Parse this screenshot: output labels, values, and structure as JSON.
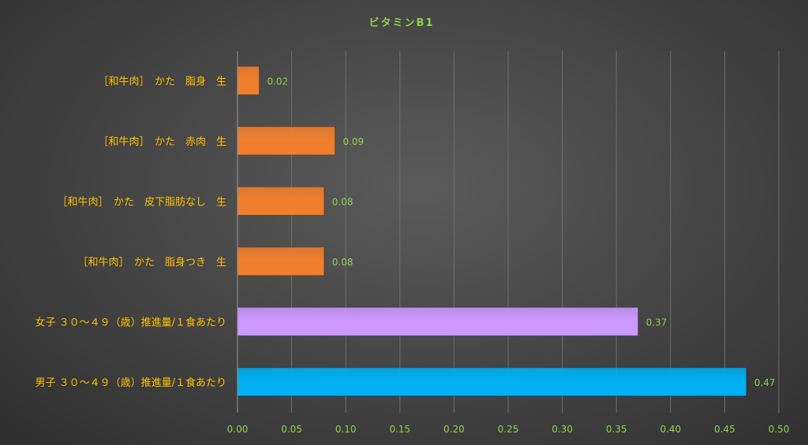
{
  "chart_data": {
    "type": "bar",
    "orientation": "horizontal",
    "title": "ビタミンB1",
    "categories": [
      "［和牛肉］　かた　脂身　生",
      "［和牛肉］　かた　赤肉　生",
      "［和牛肉］　かた　皮下脂肪なし　生",
      "［和牛肉］　かた　脂身つき　生",
      "女子 ３０～４９（歳）推進量/１食あたり",
      "男子 ３０～４９（歳）推進量/１食あたり"
    ],
    "values": [
      0.02,
      0.09,
      0.08,
      0.08,
      0.37,
      0.47
    ],
    "value_labels": [
      "0.02",
      "0.09",
      "0.08",
      "0.08",
      "0.37",
      "0.47"
    ],
    "bar_colors": [
      "#f07f2d",
      "#f07f2d",
      "#f07f2d",
      "#f07f2d",
      "#cc99ff",
      "#00b0f0"
    ],
    "xlim": [
      0,
      0.5
    ],
    "xticks": [
      "0.00",
      "0.05",
      "0.10",
      "0.15",
      "0.20",
      "0.25",
      "0.30",
      "0.35",
      "0.40",
      "0.45",
      "0.50"
    ],
    "grid": true,
    "legend": "none"
  }
}
